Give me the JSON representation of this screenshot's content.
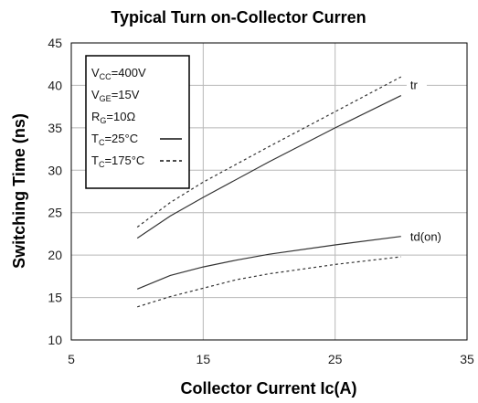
{
  "chart_data": {
    "type": "line",
    "title": "Typical Turn on-Collector Curren",
    "xlabel": "Collector Current Ic(A)",
    "ylabel": "Switching Time (ns)",
    "xlim": [
      5,
      35
    ],
    "ylim": [
      10,
      45
    ],
    "xticks": [
      "5",
      "15",
      "25",
      "35"
    ],
    "yticks": [
      "10",
      "15",
      "20",
      "25",
      "30",
      "35",
      "40",
      "45"
    ],
    "grid": true,
    "legend": {
      "placement": "top-left",
      "conditions": [
        {
          "main": "V",
          "sub": "CC",
          "rest": "=400V"
        },
        {
          "main": "V",
          "sub": "GE",
          "rest": "=15V"
        },
        {
          "main": "R",
          "sub": "G",
          "rest": "=10Ω"
        }
      ],
      "styles": [
        {
          "main": "T",
          "sub": "C",
          "rest": "=25°C",
          "dash": "solid"
        },
        {
          "main": "T",
          "sub": "C",
          "rest": "=175°C",
          "dash": "dashed"
        }
      ]
    },
    "series": [
      {
        "label": "tr",
        "condition": "Tc=25°C",
        "dash": "solid",
        "x": [
          10,
          12.5,
          15,
          20,
          25,
          30
        ],
        "y": [
          22,
          24.6,
          26.8,
          31,
          35,
          38.8
        ]
      },
      {
        "label": "tr",
        "condition": "Tc=175°C",
        "dash": "dashed",
        "x": [
          10,
          12.5,
          15,
          20,
          25,
          30
        ],
        "y": [
          23.3,
          26.2,
          28.6,
          32.8,
          36.9,
          41
        ]
      },
      {
        "label": "td(on)",
        "condition": "Tc=25°C",
        "dash": "solid",
        "x": [
          10,
          12.5,
          15,
          17.5,
          20,
          25,
          30
        ],
        "y": [
          16,
          17.6,
          18.6,
          19.4,
          20.1,
          21.2,
          22.2
        ]
      },
      {
        "label": "td(on)",
        "condition": "Tc=175°C",
        "dash": "dashed",
        "x": [
          10,
          12.5,
          15,
          17.5,
          20,
          25,
          30
        ],
        "y": [
          13.9,
          15.1,
          16.1,
          17.1,
          17.8,
          18.9,
          19.8
        ]
      }
    ],
    "series_labels": [
      {
        "text": "tr",
        "x": 30.7,
        "y": 40.1
      },
      {
        "text": "td(on)",
        "x": 30.7,
        "y": 22.2
      }
    ]
  }
}
